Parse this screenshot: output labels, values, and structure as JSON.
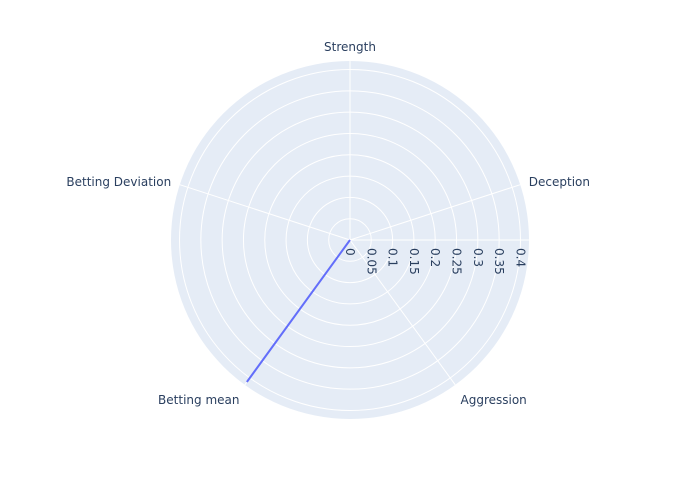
{
  "chart_data": {
    "type": "radar",
    "categories": [
      "Strength",
      "Deception",
      "Aggression",
      "Betting mean",
      "Betting Deviation"
    ],
    "series": [
      {
        "values": [
          0,
          0,
          0,
          0.41,
          0
        ],
        "color": "#636efa"
      }
    ],
    "radial_range": [
      0,
      0.42
    ],
    "radial_ticks": [
      0,
      0.05,
      0.1,
      0.15,
      0.2,
      0.25,
      0.3,
      0.35,
      0.4
    ],
    "radial_tick_labels": [
      "0",
      "0.05",
      "0.1",
      "0.15",
      "0.2",
      "0.25",
      "0.3",
      "0.35",
      "0.4"
    ],
    "grid": true,
    "background_color": "#e5ecf6",
    "grid_color": "#ffffff",
    "text_color": "#2a3f5f",
    "legend": "none"
  }
}
